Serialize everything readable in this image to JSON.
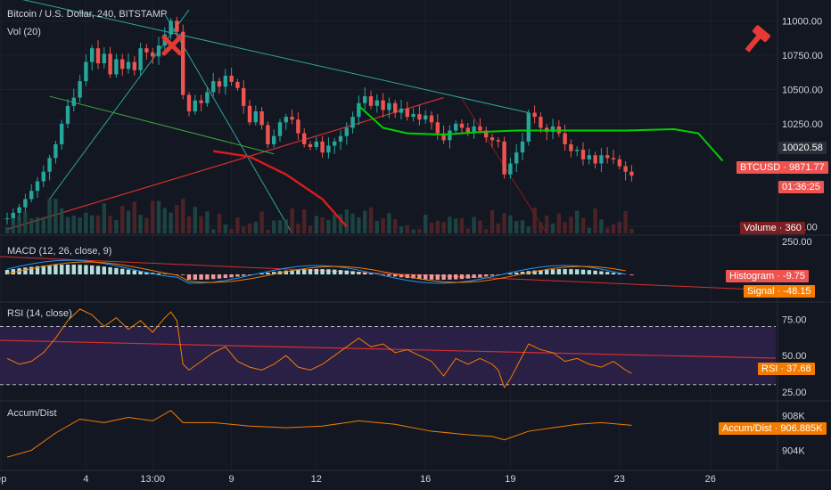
{
  "header": {
    "symbol_title": "Bitcoin / U.S. Dollar, 240, BITSTAMP",
    "volume_label": "Vol (20)",
    "macd_label": "MACD (12, 26, close, 9)",
    "rsi_label": "RSI (14, close)",
    "ad_label": "Accum/Dist"
  },
  "tags": {
    "last_price": "10020.58",
    "btcusd_label": "BTCUSD",
    "btcusd_value": "9871.77",
    "countdown": "01:36:25",
    "volume_label": "Volume",
    "volume_value": "360",
    "histogram_label": "Histogram",
    "histogram_value": "-9.75",
    "signal_label": "Signal",
    "signal_value": "-48.15",
    "rsi_label": "RSI",
    "rsi_value": "37.68",
    "ad_label": "Accum/Dist",
    "ad_value": "906.885K"
  },
  "colors": {
    "background": "#131722",
    "up": "#26a69a",
    "down": "#ef5350",
    "price_tag": "#ef5350",
    "volume_tag": "#7a1f22",
    "signal_tag": "#f57c00",
    "rsi_band": "#2a1f45",
    "green_ma": "#00d000",
    "red_ma": "#d81b1b",
    "teal_trendline": "#2ea59a",
    "red_trendline": "#d32f2f",
    "logo": "#e53935"
  },
  "icons": {
    "logo": "gavel-icon",
    "marker": "x-mark-icon"
  },
  "chart_data": {
    "type": "candlestick",
    "title": "Bitcoin / U.S. Dollar, 240, BITSTAMP",
    "x_tick_labels": [
      "ep",
      "4",
      "13:00",
      "9",
      "12",
      "16",
      "19",
      "23",
      "26"
    ],
    "price_axis": {
      "ticks": [
        11000,
        10750,
        10500,
        10250,
        9500
      ],
      "tick_labels": [
        "11000.00",
        "10750.00",
        "10500.00",
        "10250.00",
        "9500.00"
      ],
      "range": [
        9450,
        11100
      ]
    },
    "price_path": [
      [
        0,
        9560
      ],
      [
        2,
        9640
      ],
      [
        4,
        9760
      ],
      [
        6,
        9900
      ],
      [
        8,
        10100
      ],
      [
        9,
        10250
      ],
      [
        10,
        10380
      ],
      [
        11,
        10440
      ],
      [
        12,
        10560
      ],
      [
        13,
        10700
      ],
      [
        14,
        10800
      ],
      [
        15,
        10690
      ],
      [
        16,
        10760
      ],
      [
        17,
        10610
      ],
      [
        18,
        10720
      ],
      [
        19,
        10650
      ],
      [
        20,
        10700
      ],
      [
        21,
        10640
      ],
      [
        22,
        10800
      ],
      [
        24,
        10740
      ],
      [
        26,
        10900
      ],
      [
        27,
        11000
      ],
      [
        28,
        10920
      ],
      [
        29,
        10460
      ],
      [
        30,
        10340
      ],
      [
        31,
        10420
      ],
      [
        32,
        10400
      ],
      [
        33,
        10480
      ],
      [
        34,
        10560
      ],
      [
        35,
        10520
      ],
      [
        36,
        10600
      ],
      [
        38,
        10510
      ],
      [
        39,
        10380
      ],
      [
        40,
        10260
      ],
      [
        41,
        10340
      ],
      [
        42,
        10240
      ],
      [
        43,
        10100
      ],
      [
        44,
        10160
      ],
      [
        45,
        10260
      ],
      [
        46,
        10300
      ],
      [
        47,
        10280
      ],
      [
        48,
        10180
      ],
      [
        49,
        10100
      ],
      [
        50,
        10080
      ],
      [
        51,
        10120
      ],
      [
        52,
        10040
      ],
      [
        53,
        10090
      ],
      [
        54,
        10120
      ],
      [
        55,
        10160
      ],
      [
        56,
        10220
      ],
      [
        57,
        10300
      ],
      [
        58,
        10400
      ],
      [
        59,
        10450
      ],
      [
        60,
        10380
      ],
      [
        61,
        10420
      ],
      [
        62,
        10350
      ],
      [
        63,
        10400
      ],
      [
        64,
        10330
      ],
      [
        65,
        10360
      ],
      [
        66,
        10300
      ],
      [
        67,
        10320
      ],
      [
        68,
        10280
      ],
      [
        69,
        10310
      ],
      [
        70,
        10260
      ],
      [
        71,
        10180
      ],
      [
        72,
        10130
      ],
      [
        73,
        10200
      ],
      [
        74,
        10250
      ],
      [
        75,
        10220
      ],
      [
        76,
        10180
      ],
      [
        77,
        10230
      ],
      [
        78,
        10200
      ],
      [
        79,
        10150
      ],
      [
        80,
        10130
      ],
      [
        81,
        10120
      ],
      [
        82,
        9880
      ],
      [
        83,
        9960
      ],
      [
        84,
        10040
      ],
      [
        85,
        10120
      ],
      [
        86,
        10330
      ],
      [
        87,
        10300
      ],
      [
        88,
        10220
      ],
      [
        89,
        10190
      ],
      [
        90,
        10230
      ],
      [
        91,
        10180
      ],
      [
        92,
        10100
      ],
      [
        93,
        10050
      ],
      [
        94,
        10060
      ],
      [
        95,
        9990
      ],
      [
        96,
        10020
      ],
      [
        97,
        9960
      ],
      [
        98,
        10020
      ],
      [
        99,
        10000
      ],
      [
        100,
        9990
      ],
      [
        101,
        9940
      ],
      [
        102,
        9900
      ],
      [
        103,
        9871.77
      ]
    ],
    "macd": {
      "axis_ticks": [
        250
      ],
      "axis_tick_labels": [
        "250.00"
      ],
      "histogram_value": -9.75,
      "signal_value": -48.15
    },
    "rsi": {
      "axis_ticks": [
        75,
        50,
        25
      ],
      "axis_tick_labels": [
        "75.00",
        "50.00",
        "25.00"
      ],
      "upper_band": 70,
      "lower_band": 30,
      "range": [
        20,
        85
      ],
      "values": [
        [
          0,
          48
        ],
        [
          2,
          44
        ],
        [
          4,
          46
        ],
        [
          6,
          52
        ],
        [
          8,
          62
        ],
        [
          10,
          74
        ],
        [
          12,
          82
        ],
        [
          14,
          78
        ],
        [
          16,
          70
        ],
        [
          18,
          76
        ],
        [
          20,
          68
        ],
        [
          22,
          74
        ],
        [
          24,
          66
        ],
        [
          26,
          76
        ],
        [
          27,
          80
        ],
        [
          28,
          74
        ],
        [
          29,
          44
        ],
        [
          30,
          40
        ],
        [
          32,
          46
        ],
        [
          34,
          52
        ],
        [
          36,
          56
        ],
        [
          38,
          46
        ],
        [
          40,
          42
        ],
        [
          42,
          40
        ],
        [
          44,
          44
        ],
        [
          46,
          50
        ],
        [
          48,
          42
        ],
        [
          50,
          40
        ],
        [
          52,
          44
        ],
        [
          54,
          50
        ],
        [
          56,
          56
        ],
        [
          58,
          62
        ],
        [
          60,
          56
        ],
        [
          62,
          58
        ],
        [
          64,
          52
        ],
        [
          66,
          54
        ],
        [
          68,
          50
        ],
        [
          70,
          46
        ],
        [
          72,
          36
        ],
        [
          74,
          48
        ],
        [
          76,
          44
        ],
        [
          78,
          48
        ],
        [
          80,
          44
        ],
        [
          81,
          40
        ],
        [
          82,
          28
        ],
        [
          83,
          34
        ],
        [
          84,
          42
        ],
        [
          86,
          58
        ],
        [
          88,
          54
        ],
        [
          90,
          52
        ],
        [
          92,
          46
        ],
        [
          94,
          48
        ],
        [
          96,
          44
        ],
        [
          98,
          42
        ],
        [
          100,
          46
        ],
        [
          102,
          40
        ],
        [
          103,
          37.68
        ]
      ]
    },
    "accum_dist": {
      "axis_ticks": [
        908,
        904
      ],
      "axis_tick_labels": [
        "908K",
        "904K"
      ],
      "unit": "K",
      "range": [
        902.5,
        909.5
      ],
      "values": [
        [
          0,
          903.2
        ],
        [
          4,
          904
        ],
        [
          8,
          906
        ],
        [
          12,
          907.6
        ],
        [
          16,
          907.2
        ],
        [
          20,
          907.8
        ],
        [
          24,
          907.4
        ],
        [
          27,
          908.6
        ],
        [
          29,
          907.2
        ],
        [
          34,
          907.2
        ],
        [
          40,
          906.8
        ],
        [
          46,
          906.6
        ],
        [
          52,
          906.8
        ],
        [
          58,
          907.4
        ],
        [
          64,
          907
        ],
        [
          70,
          906.2
        ],
        [
          76,
          905.8
        ],
        [
          80,
          905.6
        ],
        [
          82,
          905.2
        ],
        [
          86,
          906.2
        ],
        [
          90,
          906.6
        ],
        [
          94,
          907
        ],
        [
          98,
          907.2
        ],
        [
          103,
          906.885
        ]
      ]
    },
    "overlays": {
      "green_ma": [
        [
          58,
          10380
        ],
        [
          62,
          10220
        ],
        [
          66,
          10180
        ],
        [
          72,
          10170
        ],
        [
          78,
          10190
        ],
        [
          84,
          10200
        ],
        [
          90,
          10200
        ],
        [
          96,
          10200
        ],
        [
          102,
          10200
        ],
        [
          110,
          10210
        ],
        [
          114,
          10180
        ],
        [
          118,
          9980
        ]
      ],
      "red_ma": [
        [
          34,
          10050
        ],
        [
          40,
          10010
        ],
        [
          46,
          9880
        ],
        [
          52,
          9700
        ],
        [
          56,
          9500
        ]
      ],
      "teal_trendline": [
        [
          -2,
          11200
        ],
        [
          86,
          10330
        ]
      ],
      "red_trendline": [
        [
          0,
          9480
        ],
        [
          72,
          10440
        ]
      ]
    }
  }
}
